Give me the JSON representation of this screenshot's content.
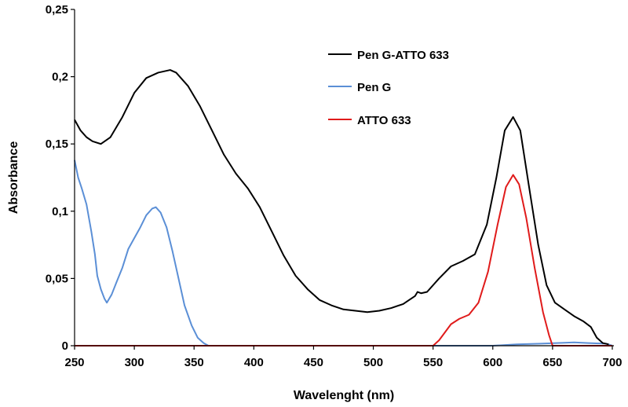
{
  "chart_data": {
    "type": "line",
    "xlabel": "Wavelenght (nm)",
    "ylabel": "Absorbance",
    "xlim": [
      250,
      700
    ],
    "ylim": [
      0,
      0.25
    ],
    "x_ticks": [
      "250",
      "300",
      "350",
      "400",
      "450",
      "500",
      "550",
      "600",
      "650",
      "700"
    ],
    "y_ticks": [
      "0",
      "0,05",
      "0,1",
      "0,15",
      "0,2",
      "0,25"
    ],
    "grid": false,
    "legend_position": "top-right",
    "series": [
      {
        "name": "Pen G-ATTO 633",
        "color": "#000000",
        "points": [
          [
            250,
            0.168
          ],
          [
            255,
            0.16
          ],
          [
            260,
            0.155
          ],
          [
            265,
            0.152
          ],
          [
            272,
            0.15
          ],
          [
            280,
            0.155
          ],
          [
            290,
            0.17
          ],
          [
            300,
            0.188
          ],
          [
            310,
            0.199
          ],
          [
            320,
            0.203
          ],
          [
            330,
            0.205
          ],
          [
            335,
            0.203
          ],
          [
            345,
            0.193
          ],
          [
            355,
            0.178
          ],
          [
            365,
            0.16
          ],
          [
            375,
            0.142
          ],
          [
            385,
            0.128
          ],
          [
            395,
            0.117
          ],
          [
            405,
            0.103
          ],
          [
            415,
            0.085
          ],
          [
            425,
            0.067
          ],
          [
            435,
            0.052
          ],
          [
            445,
            0.042
          ],
          [
            455,
            0.034
          ],
          [
            465,
            0.03
          ],
          [
            475,
            0.027
          ],
          [
            485,
            0.026
          ],
          [
            495,
            0.025
          ],
          [
            505,
            0.026
          ],
          [
            515,
            0.028
          ],
          [
            525,
            0.031
          ],
          [
            535,
            0.037
          ],
          [
            537,
            0.04
          ],
          [
            540,
            0.039
          ],
          [
            545,
            0.04
          ],
          [
            555,
            0.05
          ],
          [
            565,
            0.059
          ],
          [
            575,
            0.063
          ],
          [
            585,
            0.068
          ],
          [
            595,
            0.09
          ],
          [
            603,
            0.125
          ],
          [
            610,
            0.16
          ],
          [
            617,
            0.17
          ],
          [
            623,
            0.16
          ],
          [
            630,
            0.12
          ],
          [
            638,
            0.075
          ],
          [
            645,
            0.045
          ],
          [
            652,
            0.032
          ],
          [
            660,
            0.027
          ],
          [
            668,
            0.022
          ],
          [
            676,
            0.018
          ],
          [
            682,
            0.014
          ],
          [
            687,
            0.006
          ],
          [
            692,
            0.002
          ],
          [
            697,
            0.001
          ]
        ]
      },
      {
        "name": "Pen G",
        "color": "#5b8fd6",
        "points": [
          [
            250,
            0.138
          ],
          [
            253,
            0.125
          ],
          [
            256,
            0.117
          ],
          [
            260,
            0.105
          ],
          [
            264,
            0.085
          ],
          [
            267,
            0.068
          ],
          [
            269,
            0.052
          ],
          [
            272,
            0.042
          ],
          [
            275,
            0.035
          ],
          [
            277,
            0.032
          ],
          [
            281,
            0.038
          ],
          [
            285,
            0.047
          ],
          [
            290,
            0.058
          ],
          [
            295,
            0.072
          ],
          [
            300,
            0.08
          ],
          [
            305,
            0.088
          ],
          [
            310,
            0.097
          ],
          [
            315,
            0.102
          ],
          [
            318,
            0.103
          ],
          [
            322,
            0.099
          ],
          [
            327,
            0.088
          ],
          [
            332,
            0.07
          ],
          [
            337,
            0.05
          ],
          [
            342,
            0.03
          ],
          [
            348,
            0.015
          ],
          [
            353,
            0.006
          ],
          [
            358,
            0.002
          ],
          [
            362,
            0.0
          ],
          [
            400,
            0.0
          ],
          [
            500,
            0.0
          ],
          [
            600,
            0.0
          ],
          [
            620,
            0.001
          ],
          [
            640,
            0.0015
          ],
          [
            660,
            0.0022
          ],
          [
            668,
            0.0025
          ],
          [
            680,
            0.002
          ],
          [
            695,
            0.0015
          ],
          [
            700,
            0.0
          ]
        ]
      },
      {
        "name": "ATTO 633",
        "color": "#e01b1b",
        "points": [
          [
            250,
            0.0
          ],
          [
            400,
            0.0
          ],
          [
            550,
            0.0
          ],
          [
            555,
            0.004
          ],
          [
            560,
            0.01
          ],
          [
            565,
            0.016
          ],
          [
            572,
            0.02
          ],
          [
            580,
            0.023
          ],
          [
            588,
            0.032
          ],
          [
            596,
            0.055
          ],
          [
            604,
            0.09
          ],
          [
            611,
            0.118
          ],
          [
            617,
            0.127
          ],
          [
            622,
            0.12
          ],
          [
            628,
            0.095
          ],
          [
            635,
            0.058
          ],
          [
            642,
            0.025
          ],
          [
            647,
            0.008
          ],
          [
            650,
            0.0
          ],
          [
            700,
            0.0
          ]
        ]
      }
    ]
  }
}
